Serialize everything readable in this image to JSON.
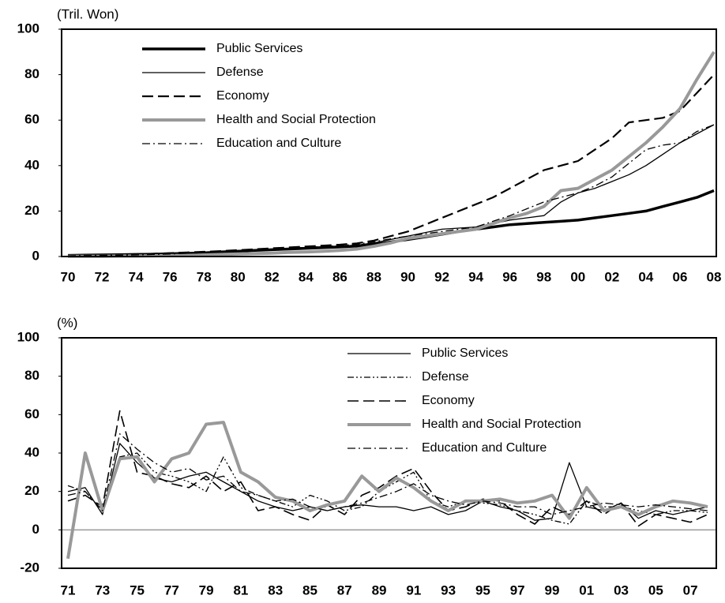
{
  "chart_data": [
    {
      "type": "line",
      "ylabel": "(Tril. Won)",
      "categories": [
        "70",
        null,
        "72",
        null,
        "74",
        null,
        "76",
        null,
        "78",
        null,
        "80",
        null,
        "82",
        null,
        "84",
        null,
        "86",
        null,
        "88",
        null,
        "90",
        null,
        "92",
        null,
        "94",
        null,
        "96",
        null,
        "98",
        null,
        "00",
        null,
        "02",
        null,
        "04",
        null,
        "06",
        null,
        "08"
      ],
      "ylim": [
        0,
        100
      ],
      "yticks": [
        0,
        20,
        40,
        60,
        80,
        100
      ],
      "legend": "upper left",
      "series": [
        {
          "name": "Public Services",
          "color": "#000000",
          "linestyle": "solid",
          "linewidth": 3.5,
          "values": [
            0.5,
            0.6,
            0.7,
            0.8,
            0.9,
            1,
            1.2,
            1.4,
            1.6,
            2,
            2.3,
            2.7,
            3,
            3.3,
            3.6,
            3.9,
            4.2,
            4.6,
            5.3,
            6.4,
            7.5,
            8.6,
            9.8,
            11,
            12,
            13,
            14,
            14.5,
            15,
            15.5,
            16,
            17,
            18,
            19,
            20,
            22,
            24,
            26,
            29
          ]
        },
        {
          "name": "Defense",
          "color": "#000000",
          "linestyle": "solid",
          "linewidth": 1.3,
          "values": [
            0.3,
            0.4,
            0.5,
            0.6,
            0.8,
            1,
            1.2,
            1.5,
            1.8,
            2.2,
            2.6,
            3,
            3.3,
            3.6,
            4,
            4.3,
            4.6,
            5,
            6,
            7.5,
            9,
            10.5,
            12,
            12.5,
            13,
            14.5,
            16,
            17,
            18,
            24,
            28,
            30,
            33,
            36,
            40,
            45,
            50,
            54,
            58
          ]
        },
        {
          "name": "Economy",
          "color": "#000000",
          "linestyle": "dashed",
          "linewidth": 2.2,
          "values": [
            0.5,
            0.6,
            0.7,
            0.8,
            1,
            1.2,
            1.5,
            1.8,
            2.1,
            2.4,
            2.8,
            3.2,
            3.6,
            4,
            4.4,
            4.8,
            5.2,
            5.8,
            7,
            9,
            11,
            14,
            17,
            20,
            23,
            26,
            30,
            34,
            38,
            40,
            42,
            47,
            52,
            59,
            60,
            61,
            64,
            72,
            80
          ]
        },
        {
          "name": "Health and Social Protection",
          "color": "#999999",
          "linestyle": "solid",
          "linewidth": 4,
          "values": [
            0.1,
            0.1,
            0.1,
            0.2,
            0.2,
            0.3,
            0.4,
            0.5,
            0.7,
            0.9,
            1.1,
            1.3,
            1.5,
            1.8,
            2,
            2.3,
            2.7,
            3.3,
            4.5,
            6,
            8,
            9,
            10,
            11,
            12,
            14.5,
            17,
            19,
            22,
            29,
            30,
            34,
            38,
            44,
            50,
            57,
            65,
            78,
            90
          ]
        },
        {
          "name": "Education and Culture",
          "color": "#000000",
          "linestyle": "dashdot",
          "linewidth": 1.3,
          "values": [
            0.3,
            0.4,
            0.5,
            0.6,
            0.7,
            0.9,
            1.1,
            1.4,
            1.7,
            2,
            2.4,
            2.8,
            3.2,
            3.6,
            4,
            4.4,
            4.8,
            5.4,
            6.5,
            7.8,
            9,
            10,
            11,
            12,
            13,
            15.5,
            18,
            21,
            24,
            26,
            28,
            31,
            35,
            41,
            47,
            49,
            50,
            55,
            58
          ]
        }
      ]
    },
    {
      "type": "line",
      "ylabel": "(%)",
      "categories": [
        "71",
        null,
        "73",
        null,
        "75",
        null,
        "77",
        null,
        "79",
        null,
        "81",
        null,
        "83",
        null,
        "85",
        null,
        "87",
        null,
        "89",
        null,
        "91",
        null,
        "93",
        null,
        "95",
        null,
        "97",
        null,
        "99",
        null,
        "01",
        null,
        "03",
        null,
        "05",
        null,
        "07",
        null
      ],
      "ylim": [
        -20,
        100
      ],
      "yticks": [
        -20,
        0,
        20,
        40,
        60,
        80,
        100
      ],
      "legend": "upper right",
      "hline": 0,
      "series": [
        {
          "name": "Public Services",
          "color": "#000000",
          "linestyle": "solid",
          "linewidth": 1.3,
          "values": [
            20,
            22,
            8,
            45,
            35,
            27,
            25,
            28,
            30,
            25,
            20,
            15,
            12,
            10,
            12,
            10,
            12,
            13,
            12,
            12,
            10,
            12,
            8,
            10,
            15,
            12,
            10,
            5,
            6,
            35,
            12,
            10,
            14,
            6,
            10,
            8,
            10,
            12
          ]
        },
        {
          "name": "Defense",
          "color": "#000000",
          "linestyle": "dashdotdot",
          "linewidth": 1.3,
          "values": [
            23,
            20,
            10,
            38,
            40,
            30,
            28,
            25,
            20,
            38,
            22,
            18,
            15,
            12,
            18,
            15,
            10,
            12,
            20,
            25,
            30,
            15,
            12,
            15,
            14,
            13,
            10,
            8,
            5,
            3,
            15,
            12,
            12,
            10,
            8,
            10,
            10,
            9
          ]
        },
        {
          "name": "Economy",
          "color": "#000000",
          "linestyle": "dashed",
          "linewidth": 1.6,
          "values": [
            15,
            18,
            12,
            62,
            30,
            28,
            24,
            22,
            28,
            20,
            25,
            10,
            12,
            8,
            5,
            13,
            8,
            18,
            22,
            28,
            32,
            20,
            10,
            12,
            16,
            15,
            8,
            3,
            12,
            8,
            15,
            8,
            14,
            2,
            8,
            6,
            4,
            8
          ]
        },
        {
          "name": "Health and Social Protection",
          "color": "#999999",
          "linestyle": "solid",
          "linewidth": 4,
          "values": [
            -15,
            40,
            10,
            37,
            38,
            25,
            37,
            40,
            55,
            56,
            30,
            25,
            17,
            15,
            10,
            13,
            15,
            28,
            20,
            27,
            22,
            15,
            10,
            15,
            15,
            16,
            14,
            15,
            18,
            6,
            22,
            10,
            12,
            8,
            12,
            15,
            14,
            12
          ]
        },
        {
          "name": "Education and Culture",
          "color": "#000000",
          "linestyle": "dashdot",
          "linewidth": 1.3,
          "values": [
            18,
            20,
            10,
            50,
            42,
            35,
            30,
            32,
            26,
            28,
            20,
            18,
            15,
            16,
            12,
            10,
            12,
            14,
            17,
            20,
            24,
            18,
            15,
            13,
            15,
            14,
            12,
            12,
            8,
            10,
            12,
            14,
            13,
            12,
            13,
            12,
            11,
            10
          ]
        }
      ]
    }
  ]
}
